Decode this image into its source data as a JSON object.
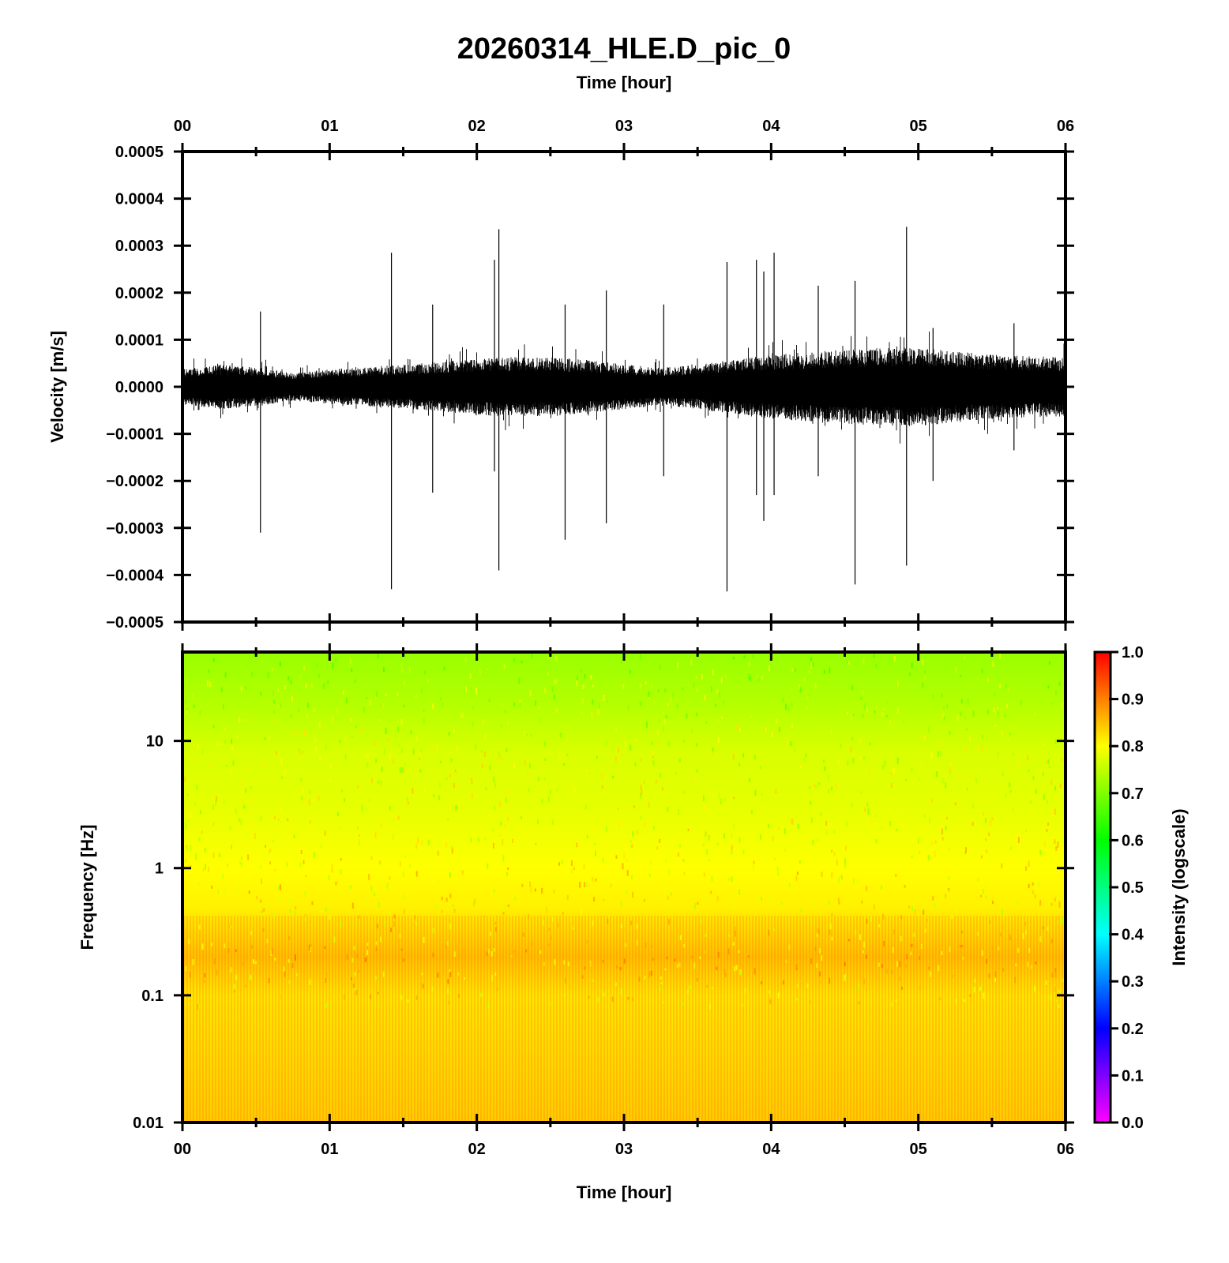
{
  "chart_data": [
    {
      "type": "line",
      "title": "20260314_HLE.D_pic_0",
      "xlabel": "Time [hour]",
      "ylabel": "Velocity [m/s]",
      "x_axis_position": "top",
      "xlim": [
        0,
        6
      ],
      "ylim": [
        -0.0005,
        0.0005
      ],
      "x_ticks": [
        "00",
        "01",
        "02",
        "03",
        "04",
        "05",
        "06"
      ],
      "y_ticks": [
        "0.0005",
        "0.0004",
        "0.0003",
        "0.0002",
        "0.0001",
        "0.0000",
        "−0.0001",
        "−0.0002",
        "−0.0003",
        "−0.0004",
        "−0.0005"
      ],
      "series": [
        {
          "x": [
            0.0,
            0.25,
            0.5,
            0.75,
            1.0,
            1.25,
            1.5,
            1.75,
            2.0,
            2.25,
            2.5,
            2.75,
            3.0,
            3.25,
            3.5,
            3.75,
            4.0,
            4.25,
            4.5,
            4.75,
            5.0,
            5.25,
            5.5,
            5.75,
            6.0
          ],
          "envelope_amplitude": [
            3.5e-05,
            4.5e-05,
            4e-05,
            2.8e-05,
            3.5e-05,
            4e-05,
            4.5e-05,
            5e-05,
            5.8e-05,
            6e-05,
            6e-05,
            5.5e-05,
            4.5e-05,
            3.8e-05,
            4.5e-05,
            5.5e-05,
            6.5e-05,
            7e-05,
            7.5e-05,
            7.8e-05,
            8e-05,
            7.2e-05,
            6.5e-05,
            6.2e-05,
            6e-05
          ],
          "spikes": [
            {
              "t": 0.53,
              "max": 0.00016,
              "min": -0.00031
            },
            {
              "t": 1.42,
              "max": 0.000285,
              "min": -0.00043
            },
            {
              "t": 1.7,
              "max": 0.000175,
              "min": -0.000225
            },
            {
              "t": 2.12,
              "max": 0.00027,
              "min": -0.00018
            },
            {
              "t": 2.15,
              "max": 0.000335,
              "min": -0.00039
            },
            {
              "t": 2.6,
              "max": 0.000175,
              "min": -0.000325
            },
            {
              "t": 2.88,
              "max": 0.000205,
              "min": -0.00029
            },
            {
              "t": 3.27,
              "max": 0.000175,
              "min": -0.00019
            },
            {
              "t": 3.7,
              "max": 0.000265,
              "min": -0.000435
            },
            {
              "t": 3.9,
              "max": 0.00027,
              "min": -0.00023
            },
            {
              "t": 3.95,
              "max": 0.000245,
              "min": -0.000285
            },
            {
              "t": 4.02,
              "max": 0.000285,
              "min": -0.00023
            },
            {
              "t": 4.32,
              "max": 0.000215,
              "min": -0.00019
            },
            {
              "t": 4.57,
              "max": 0.000225,
              "min": -0.00042
            },
            {
              "t": 4.92,
              "max": 0.00034,
              "min": -0.00038
            },
            {
              "t": 5.1,
              "max": 0.000125,
              "min": -0.0002
            },
            {
              "t": 5.65,
              "max": 0.000135,
              "min": -0.000135
            }
          ]
        }
      ]
    },
    {
      "type": "heatmap",
      "xlabel": "Time [hour]",
      "ylabel": "Frequency [Hz]",
      "xlim": [
        0,
        6
      ],
      "ylim": [
        0.01,
        50
      ],
      "y_scale": "log",
      "x_ticks": [
        "00",
        "01",
        "02",
        "03",
        "04",
        "05",
        "06"
      ],
      "y_ticks": [
        "10",
        "1",
        "0.1",
        "0.01"
      ],
      "intensity_profile": [
        {
          "freq_hz": 50,
          "intensity": 0.72
        },
        {
          "freq_hz": 20,
          "intensity": 0.74
        },
        {
          "freq_hz": 8,
          "intensity": 0.77
        },
        {
          "freq_hz": 3,
          "intensity": 0.78
        },
        {
          "freq_hz": 1,
          "intensity": 0.8
        },
        {
          "freq_hz": 0.5,
          "intensity": 0.81
        },
        {
          "freq_hz": 0.2,
          "intensity": 0.85
        },
        {
          "freq_hz": 0.1,
          "intensity": 0.82
        },
        {
          "freq_hz": 0.03,
          "intensity": 0.83
        },
        {
          "freq_hz": 0.01,
          "intensity": 0.84
        }
      ],
      "colorbar": {
        "label": "Intensity (logscale)",
        "range": [
          0,
          1
        ],
        "ticks": [
          "1.0",
          "0.9",
          "0.8",
          "0.7",
          "0.6",
          "0.5",
          "0.4",
          "0.3",
          "0.2",
          "0.1",
          "0.0"
        ],
        "colors": [
          "#ff00ff",
          "#8000ff",
          "#0000ff",
          "#0080ff",
          "#00ffff",
          "#00ff80",
          "#00ff00",
          "#80ff00",
          "#ffff00",
          "#ff8000",
          "#ff0000"
        ]
      }
    }
  ]
}
